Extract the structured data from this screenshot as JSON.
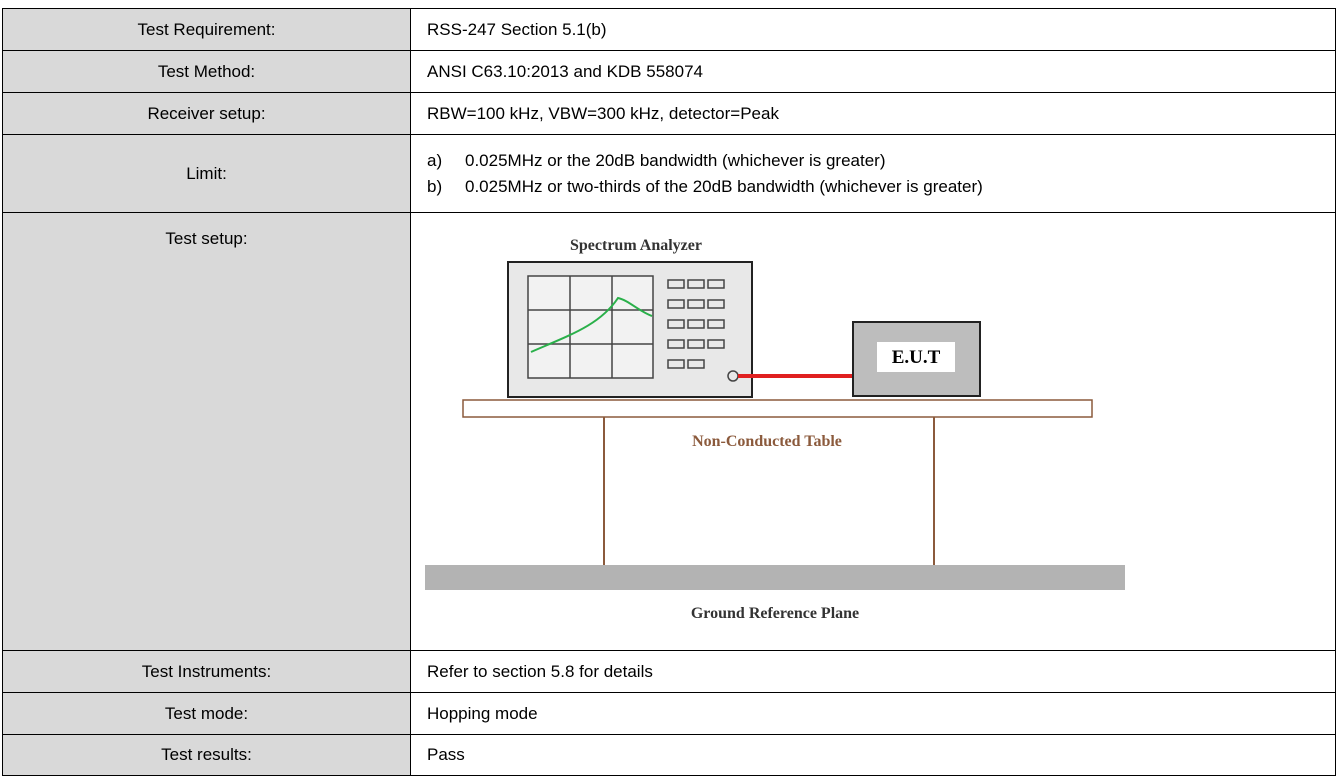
{
  "table": {
    "rows": [
      {
        "label": "Test Requirement:",
        "value": "RSS-247 Section 5.1(b)"
      },
      {
        "label": "Test Method:",
        "value": "ANSI C63.10:2013 and KDB 558074"
      },
      {
        "label": "Receiver setup:",
        "value": "RBW=100 kHz, VBW=300 kHz, detector=Peak"
      },
      {
        "label": "Limit:",
        "items": [
          {
            "marker": "a)",
            "text": "0.025MHz or the 20dB bandwidth (whichever is greater)"
          },
          {
            "marker": "b)",
            "text": "0.025MHz or two-thirds of the 20dB bandwidth (whichever is greater)"
          }
        ]
      },
      {
        "label": "Test setup:",
        "diagram": {
          "analyzer": "Spectrum Analyzer",
          "eut": "E.U.T",
          "table": "Non-Conducted Table",
          "ground": "Ground Reference Plane"
        }
      },
      {
        "label": "Test Instruments:",
        "value": "Refer to section 5.8 for details"
      },
      {
        "label": "Test mode:",
        "value": "Hopping mode"
      },
      {
        "label": "Test results:",
        "value": "Pass"
      }
    ]
  }
}
